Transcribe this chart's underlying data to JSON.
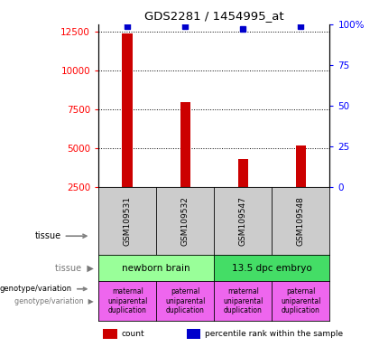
{
  "title": "GDS2281 / 1454995_at",
  "samples": [
    "GSM109531",
    "GSM109532",
    "GSM109547",
    "GSM109548"
  ],
  "counts": [
    12400,
    8000,
    4300,
    5200
  ],
  "percentiles": [
    99,
    99,
    97,
    99
  ],
  "ylim_left": [
    2500,
    13000
  ],
  "yticks_left": [
    2500,
    5000,
    7500,
    10000,
    12500
  ],
  "yticks_right": [
    0,
    25,
    50,
    75,
    100
  ],
  "ylim_right": [
    0,
    100
  ],
  "bar_color": "#cc0000",
  "dot_color": "#0000cc",
  "tissue_labels": [
    "newborn brain",
    "13.5 dpc embryo"
  ],
  "tissue_color_1": "#99ff99",
  "tissue_color_2": "#44dd66",
  "genotype_labels": [
    "maternal\nuniparental\nduplication",
    "paternal\nuniparental\nduplication",
    "maternal\nuniparental\nduplication",
    "paternal\nuniparental\nduplication"
  ],
  "genotype_color": "#ee66ee",
  "sample_box_color": "#cccccc",
  "legend_items": [
    {
      "color": "#cc0000",
      "label": "count"
    },
    {
      "color": "#0000cc",
      "label": "percentile rank within the sample"
    }
  ],
  "left_label_color": "#888888",
  "arrow_color": "#888888"
}
